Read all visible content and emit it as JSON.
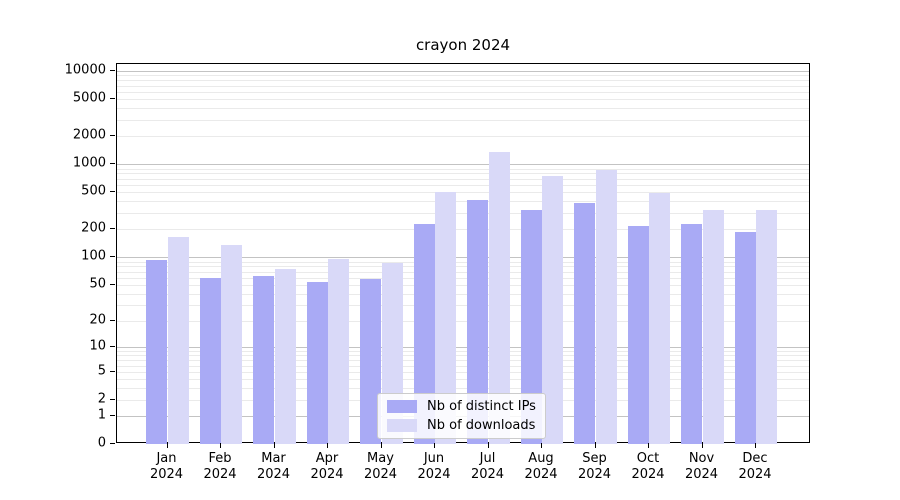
{
  "chart_data": {
    "type": "bar",
    "title": "crayon 2024",
    "categories": [
      "Jan",
      "Feb",
      "Mar",
      "Apr",
      "May",
      "Jun",
      "Jul",
      "Aug",
      "Sep",
      "Oct",
      "Nov",
      "Dec"
    ],
    "category_year": "2024",
    "series": [
      {
        "name": "Nb of distinct IPs",
        "color": "#a9aaf5",
        "values": [
          93,
          59,
          62,
          54,
          58,
          230,
          420,
          325,
          388,
          217,
          228,
          187
        ]
      },
      {
        "name": "Nb of downloads",
        "color": "#d9d9f8",
        "values": [
          166,
          135,
          75,
          96,
          86,
          510,
          1350,
          760,
          870,
          490,
          322,
          322
        ]
      }
    ],
    "xlabel": "",
    "ylabel": "",
    "yscale": "log10(1+x)",
    "yticks": [
      0,
      1,
      2,
      5,
      10,
      20,
      50,
      100,
      200,
      500,
      1000,
      2000,
      5000,
      10000
    ],
    "ylim": [
      0,
      12000
    ],
    "grid": true,
    "grid_major_color": "#c3c3c3",
    "grid_minor_color": "#eaeaea",
    "legend_position": "lower center",
    "legend": [
      "Nb of distinct IPs",
      "Nb of downloads"
    ]
  }
}
